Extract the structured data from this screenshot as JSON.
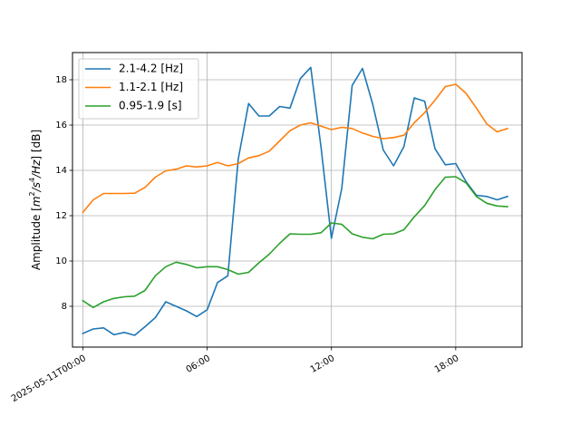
{
  "chart_data": {
    "type": "line",
    "title": "",
    "xlabel": "",
    "ylabel": "Amplitude [m²/s⁴/Hz] [dB]",
    "ylabel_parts": {
      "prefix": "Amplitude [",
      "m": "m",
      "m_sup": "2",
      "s": "/s",
      "s_sup": "4",
      "hz": "/Hz",
      "suffix": "] [dB]"
    },
    "x_unit": "hours since 2025-05-11T00:00",
    "xlim": [
      -0.5,
      21.2
    ],
    "ylim": [
      6.2,
      19.2
    ],
    "x_ticks": [
      {
        "x": 0,
        "label": "2025-05-11T00:00"
      },
      {
        "x": 6,
        "label": "06:00"
      },
      {
        "x": 12,
        "label": "12:00"
      },
      {
        "x": 18,
        "label": "18:00"
      }
    ],
    "y_ticks": [
      8,
      10,
      12,
      14,
      16,
      18
    ],
    "grid": true,
    "legend_position": "top-left",
    "x": [
      0,
      0.5,
      1,
      1.5,
      2,
      2.5,
      3,
      3.5,
      4,
      4.5,
      5,
      5.5,
      6,
      6.5,
      7,
      7.5,
      8,
      8.5,
      9,
      9.5,
      10,
      10.5,
      11,
      11.5,
      12,
      12.5,
      13,
      13.5,
      14,
      14.5,
      15,
      15.5,
      16,
      16.5,
      17,
      17.5,
      18,
      18.5,
      19,
      19.5,
      20,
      20.5
    ],
    "series": [
      {
        "name": "2.1-4.2 [Hz]",
        "color": "#1f77b4",
        "values": [
          6.8,
          7.0,
          7.05,
          6.75,
          6.85,
          6.72,
          7.1,
          7.5,
          8.2,
          8.0,
          7.8,
          7.55,
          7.85,
          9.05,
          9.35,
          14.5,
          16.95,
          16.4,
          16.4,
          16.82,
          16.75,
          18.05,
          18.55,
          15.0,
          11.0,
          13.2,
          17.75,
          18.5,
          16.9,
          14.9,
          14.2,
          15.05,
          17.2,
          17.05,
          14.95,
          14.25,
          14.3,
          13.5,
          12.9,
          12.85,
          12.7,
          12.85
        ]
      },
      {
        "name": "1.1-2.1 [Hz]",
        "color": "#ff7f0e",
        "values": [
          12.15,
          12.7,
          12.98,
          12.98,
          12.98,
          12.99,
          13.25,
          13.7,
          13.98,
          14.05,
          14.2,
          14.15,
          14.2,
          14.35,
          14.2,
          14.3,
          14.55,
          14.65,
          14.85,
          15.3,
          15.75,
          16.0,
          16.1,
          15.95,
          15.8,
          15.9,
          15.85,
          15.65,
          15.5,
          15.4,
          15.45,
          15.55,
          16.1,
          16.55,
          17.1,
          17.7,
          17.8,
          17.4,
          16.75,
          16.05,
          15.7,
          15.85
        ]
      },
      {
        "name": "0.95-1.9 [s]",
        "color": "#2ca02c",
        "values": [
          8.25,
          7.95,
          8.2,
          8.35,
          8.42,
          8.45,
          8.7,
          9.35,
          9.75,
          9.95,
          9.85,
          9.7,
          9.75,
          9.75,
          9.62,
          9.42,
          9.5,
          9.92,
          10.3,
          10.78,
          11.2,
          11.18,
          11.18,
          11.25,
          11.68,
          11.62,
          11.2,
          11.05,
          10.98,
          11.18,
          11.2,
          11.38,
          11.95,
          12.45,
          13.15,
          13.7,
          13.72,
          13.45,
          12.85,
          12.55,
          12.43,
          12.4
        ]
      }
    ]
  }
}
